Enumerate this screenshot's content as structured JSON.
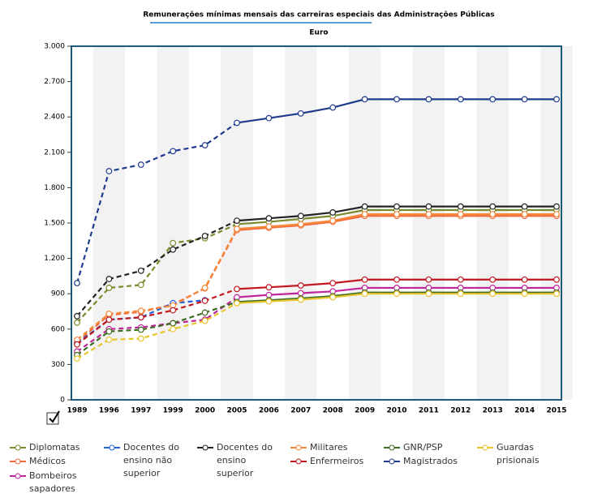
{
  "chart_data": {
    "type": "line",
    "title": "Remunerações mínimas mensais das carreiras especiais das Administrações Públicas",
    "subtitle": "Euro",
    "categories": [
      "1989",
      "1996",
      "1997",
      "1999",
      "2000",
      "2005",
      "2006",
      "2007",
      "2008",
      "2009",
      "2010",
      "2011",
      "2012",
      "2013",
      "2014",
      "2015"
    ],
    "ylim": [
      0,
      3000
    ],
    "yticks": [
      0,
      300,
      600,
      900,
      {
        "value": 1200,
        "label": "1.200"
      },
      {
        "value": 1500,
        "label": "1.500"
      },
      {
        "value": 1800,
        "label": "1.800"
      },
      {
        "value": 2100,
        "label": "2.100"
      },
      {
        "value": 2400,
        "label": "2.400"
      },
      {
        "value": 2700,
        "label": "2.700"
      },
      {
        "value": 3000,
        "label": "3.000"
      }
    ],
    "series": [
      {
        "name": "Diplomatas",
        "color": "#7a8a2a",
        "values": [
          655,
          950,
          975,
          1330,
          1370,
          1490,
          1510,
          1535,
          1560,
          1610,
          1610,
          1610,
          1610,
          1610,
          1610,
          1610
        ]
      },
      {
        "name": "Médicos",
        "color": "#f26a3a",
        "values": [
          490,
          720,
          745,
          810,
          945,
          1440,
          1460,
          1480,
          1510,
          1560,
          1560,
          1560,
          1560,
          1560,
          1560,
          1560
        ]
      },
      {
        "name": "Bombeiros sapadores",
        "color": "#c0269b",
        "values": [
          410,
          600,
          615,
          650,
          680,
          870,
          890,
          905,
          920,
          950,
          950,
          950,
          950,
          950,
          950,
          950
        ]
      },
      {
        "name": "Docentes do ensino não superior",
        "color": "#1f5fd8",
        "values": [
          480,
          680,
          700,
          820,
          845,
          null,
          null,
          null,
          null,
          null,
          null,
          null,
          null,
          null,
          null,
          null
        ]
      },
      {
        "name": "Docentes do ensino superior",
        "color": "#222222",
        "values": [
          710,
          1025,
          1095,
          1275,
          1390,
          1520,
          1540,
          1560,
          1590,
          1640,
          1640,
          1640,
          1640,
          1640,
          1640,
          1640
        ]
      },
      {
        "name": "Militares",
        "color": "#f5883a",
        "values": [
          510,
          730,
          755,
          800,
          950,
          1450,
          1470,
          1490,
          1520,
          1575,
          1575,
          1575,
          1575,
          1575,
          1575,
          1575
        ]
      },
      {
        "name": "Enfermeiros",
        "color": "#c0171f",
        "values": [
          470,
          680,
          700,
          760,
          840,
          940,
          955,
          970,
          990,
          1020,
          1020,
          1020,
          1020,
          1020,
          1020,
          1020
        ]
      },
      {
        "name": "GNR/PSP",
        "color": "#3d6b22",
        "values": [
          380,
          580,
          595,
          650,
          740,
          830,
          845,
          860,
          880,
          910,
          910,
          910,
          910,
          910,
          910,
          910
        ]
      },
      {
        "name": "Magistrados",
        "color": "#1f3c8c",
        "values": [
          990,
          1940,
          1995,
          2110,
          2160,
          2350,
          2390,
          2430,
          2480,
          2550,
          2550,
          2550,
          2550,
          2550,
          2550,
          2550
        ]
      },
      {
        "name": "Guardas prisionais",
        "color": "#e8c42c",
        "values": [
          350,
          510,
          520,
          600,
          670,
          820,
          835,
          850,
          870,
          900,
          900,
          900,
          900,
          900,
          900,
          900
        ]
      }
    ]
  }
}
